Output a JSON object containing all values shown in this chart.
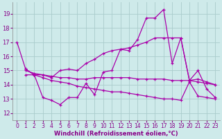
{
  "xlabel": "Windchill (Refroidissement éolien,°C)",
  "xlim": [
    -0.5,
    23.5
  ],
  "ylim": [
    11.5,
    19.8
  ],
  "yticks": [
    12,
    13,
    14,
    15,
    16,
    17,
    18,
    19
  ],
  "xticks": [
    0,
    1,
    2,
    3,
    4,
    5,
    6,
    7,
    8,
    9,
    10,
    11,
    12,
    13,
    14,
    15,
    16,
    17,
    18,
    19,
    20,
    21,
    22,
    23
  ],
  "background_color": "#ceeaea",
  "grid_color": "#aacccc",
  "line_color": "#aa00aa",
  "series": [
    {
      "x": [
        0,
        1,
        2,
        3,
        4,
        5,
        6,
        7,
        8,
        9,
        10,
        11,
        12,
        13,
        14,
        15,
        16,
        17,
        18,
        19,
        20,
        21,
        22,
        23
      ],
      "y": [
        17.0,
        15.1,
        14.7,
        13.1,
        12.9,
        12.6,
        13.1,
        13.1,
        14.1,
        13.3,
        14.9,
        15.0,
        16.5,
        16.4,
        17.2,
        18.7,
        18.7,
        19.3,
        15.5,
        17.3,
        14.3,
        15.0,
        13.7,
        13.1
      ]
    },
    {
      "x": [
        1,
        2,
        3,
        4,
        5,
        6,
        7,
        8,
        9,
        10,
        11,
        12,
        13,
        14,
        15,
        16,
        17,
        18,
        19,
        20,
        21,
        22,
        23
      ],
      "y": [
        15.1,
        14.7,
        14.7,
        14.5,
        15.0,
        15.1,
        15.0,
        15.5,
        15.8,
        16.2,
        16.4,
        16.5,
        16.6,
        16.8,
        17.0,
        17.3,
        17.3,
        17.3,
        17.3,
        14.3,
        14.4,
        14.2,
        14.0
      ]
    },
    {
      "x": [
        1,
        2,
        3,
        4,
        5,
        6,
        7,
        8,
        9,
        10,
        11,
        12,
        13,
        14,
        15,
        16,
        17,
        18,
        19,
        20,
        21,
        22,
        23
      ],
      "y": [
        15.0,
        14.8,
        14.7,
        14.6,
        14.5,
        14.5,
        14.4,
        14.4,
        14.5,
        14.5,
        14.5,
        14.5,
        14.5,
        14.4,
        14.4,
        14.4,
        14.4,
        14.3,
        14.3,
        14.3,
        14.2,
        14.1,
        14.0
      ]
    },
    {
      "x": [
        1,
        2,
        3,
        4,
        5,
        6,
        7,
        8,
        9,
        10,
        11,
        12,
        13,
        14,
        15,
        16,
        17,
        18,
        19,
        20,
        21,
        22,
        23
      ],
      "y": [
        14.7,
        14.7,
        14.5,
        14.3,
        14.2,
        14.1,
        13.9,
        13.8,
        13.7,
        13.6,
        13.5,
        13.5,
        13.4,
        13.3,
        13.2,
        13.1,
        13.0,
        13.0,
        12.9,
        14.2,
        13.2,
        13.1,
        13.0
      ]
    }
  ]
}
